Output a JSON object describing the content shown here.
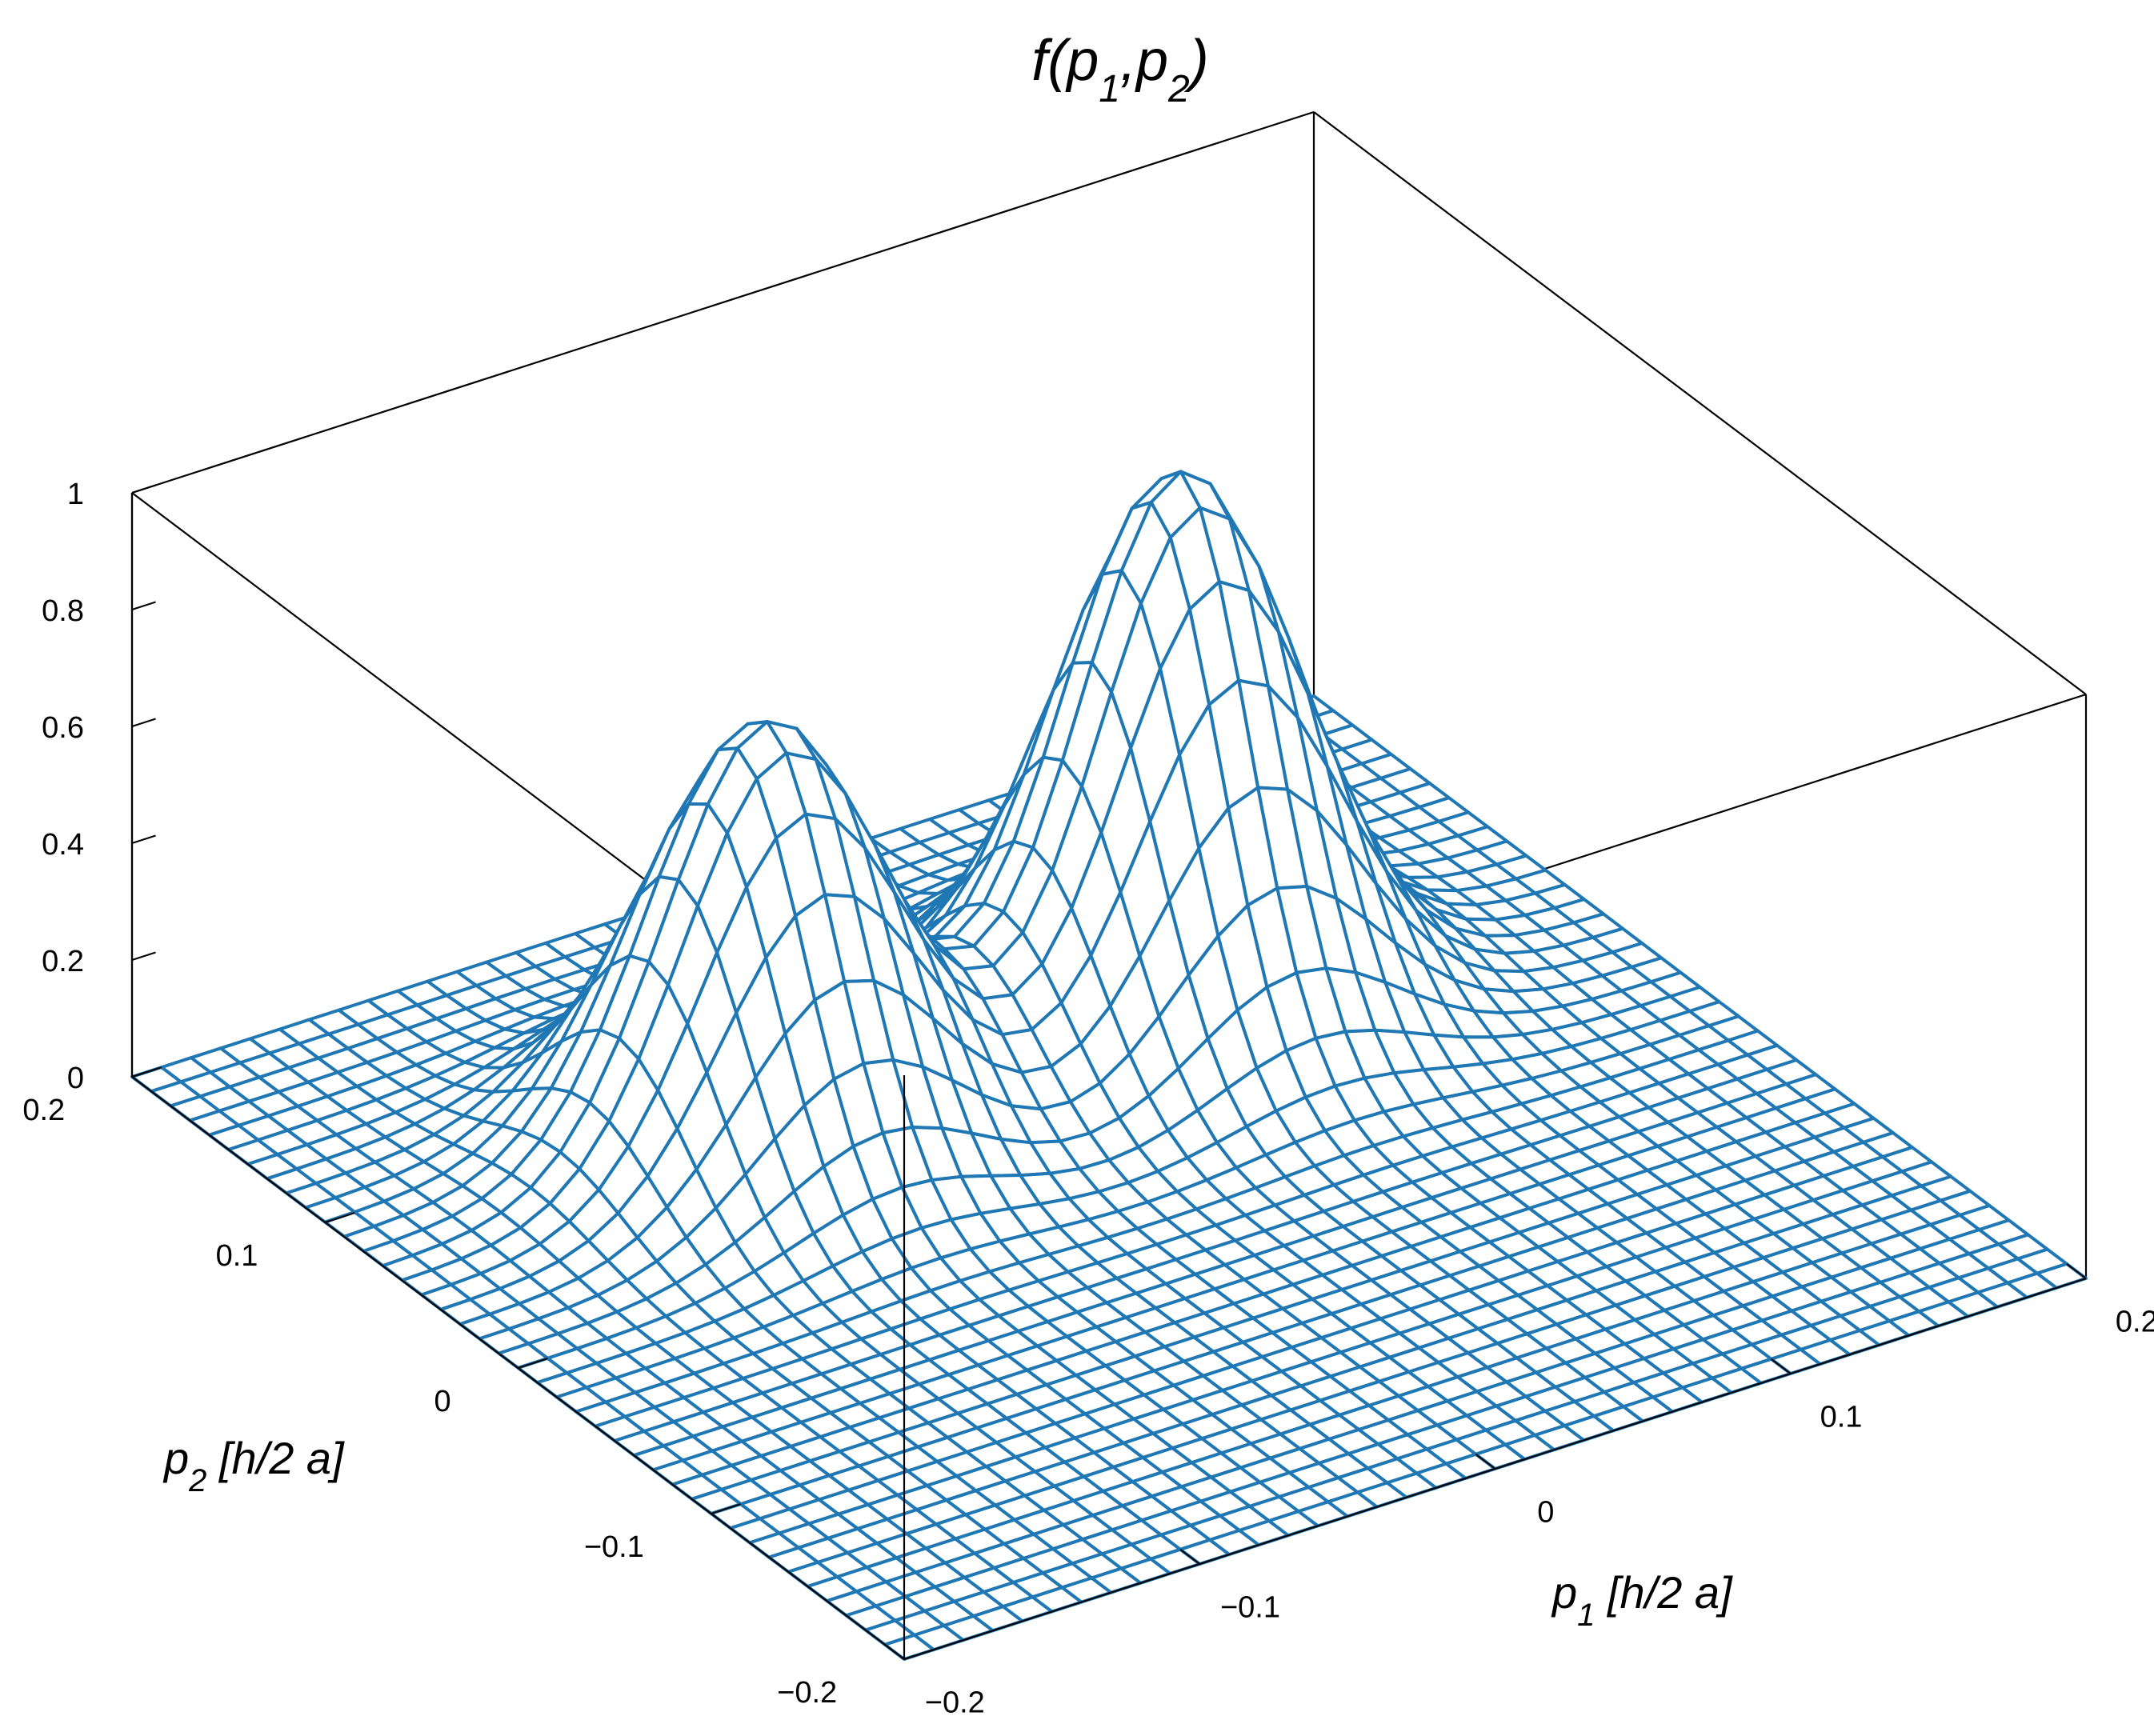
{
  "chart_data": {
    "type": "surface",
    "title": "f(p_1,p_2)",
    "title_parts": {
      "f": "f(p",
      "s1": "1",
      "comma": ",p",
      "s2": "2",
      "close": ")"
    },
    "xlabel": "p_1 [h/2 a]",
    "xlabel_parts": {
      "p": "p",
      "sub": "1",
      "rest": " [h/2  a]"
    },
    "ylabel": "p_2 [h/2 a]",
    "ylabel_parts": {
      "p": "p",
      "sub": "2",
      "rest": " [h/2  a]"
    },
    "xlim": [
      -0.2,
      0.2
    ],
    "ylim": [
      -0.2,
      0.2
    ],
    "zlim": [
      0,
      1
    ],
    "x_ticks": [
      "−0.2",
      "−0.1",
      "0",
      "0.1",
      "0.2"
    ],
    "y_ticks": [
      "−0.2",
      "−0.1",
      "0",
      "0.1",
      "0.2"
    ],
    "z_ticks": [
      "0",
      "0.2",
      "0.4",
      "0.6",
      "0.8",
      "1"
    ],
    "grid_points": 41,
    "surface_color": "#1f77b4",
    "peaks": [
      {
        "p1": -0.07,
        "p2": 0.07,
        "height": 0.72
      },
      {
        "p1": 0.07,
        "p2": 0.07,
        "height": 0.92
      }
    ],
    "peak_width": 0.035
  }
}
